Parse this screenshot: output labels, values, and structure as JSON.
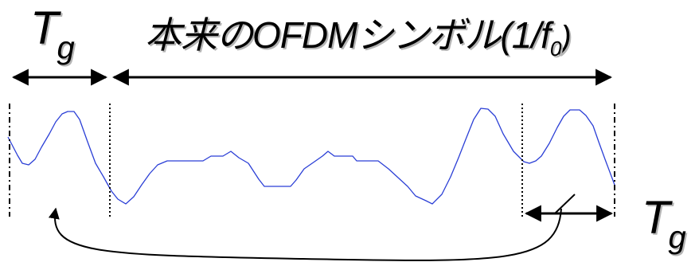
{
  "labels": {
    "guard_interval_left": {
      "main": "T",
      "sub": "g"
    },
    "guard_interval_right": {
      "main": "T",
      "sub": "g"
    },
    "title": {
      "prefix": "本来のOFDMシンボル(1/f",
      "subscript": "0",
      "suffix": ")"
    }
  },
  "colors": {
    "waveform": "#2b3fd6",
    "line": "#000000",
    "shadow": "#b5b5b5"
  }
}
